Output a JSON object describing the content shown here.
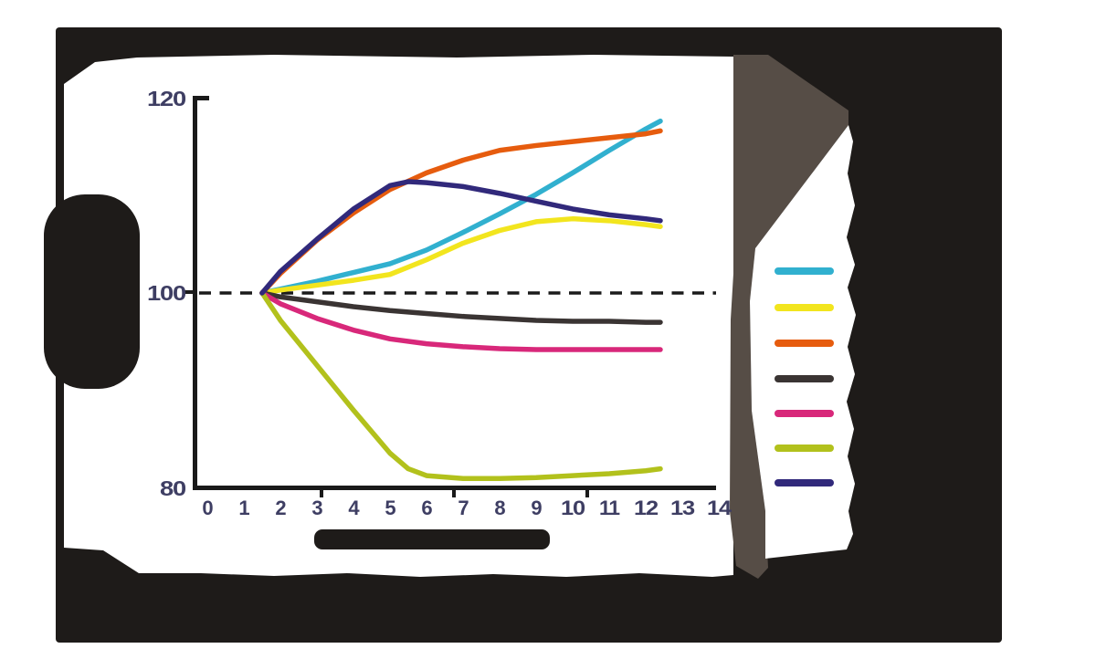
{
  "figure": {
    "backdrop_color": "#1e1b19",
    "panel_color": "#ffffff",
    "shadow_band_color": "#564d46",
    "axis_color": "#1a1a1a",
    "tick_label_color": "#3e3e63"
  },
  "obscured_text": {
    "note": "Several text areas (chart title, y-axis title, x-axis title, legend labels, footnote) are rendered as illegible dark silhouettes (dark text merged with dark background); their wording is not readable in the screenshot.",
    "illegible_regions": [
      "chart-title",
      "y-axis-title",
      "x-axis-title",
      "legend-labels",
      "footnote"
    ]
  },
  "chart_data": {
    "type": "line",
    "title": "",
    "xlabel": "",
    "ylabel": "",
    "x_range": [
      0,
      14
    ],
    "y_range": [
      80,
      120
    ],
    "x_ticks": [
      "0",
      "1",
      "2",
      "3",
      "4",
      "5",
      "6",
      "7",
      "8",
      "9",
      "10",
      "11",
      "12",
      "13",
      "14"
    ],
    "y_ticks": [
      "120",
      "100",
      "80"
    ],
    "baseline": {
      "value": 100,
      "style": "dashed",
      "color": "#1a1a1a"
    },
    "grid": false,
    "legend": {
      "position": "right",
      "labels_legible": false
    },
    "series": [
      {
        "id": "cyan",
        "color": "#31b0cf",
        "points": [
          [
            1.5,
            100
          ],
          [
            2,
            100.4
          ],
          [
            3,
            101.2
          ],
          [
            4,
            102.1
          ],
          [
            5,
            103
          ],
          [
            6,
            104.4
          ],
          [
            7,
            106.2
          ],
          [
            8,
            108.1
          ],
          [
            9,
            110.1
          ],
          [
            10,
            112.3
          ],
          [
            11,
            114.6
          ],
          [
            12,
            116.8
          ],
          [
            12.4,
            117.6
          ]
        ]
      },
      {
        "id": "yellow",
        "color": "#f2e51e",
        "points": [
          [
            1.5,
            100
          ],
          [
            2,
            100.3
          ],
          [
            3,
            100.8
          ],
          [
            4,
            101.3
          ],
          [
            5,
            101.9
          ],
          [
            6,
            103.4
          ],
          [
            7,
            105.1
          ],
          [
            8,
            106.4
          ],
          [
            9,
            107.3
          ],
          [
            10,
            107.6
          ],
          [
            11,
            107.4
          ],
          [
            12,
            107
          ],
          [
            12.4,
            106.8
          ]
        ]
      },
      {
        "id": "orange",
        "color": "#e65c0e",
        "points": [
          [
            1.5,
            100
          ],
          [
            2,
            102
          ],
          [
            3,
            105.4
          ],
          [
            4,
            108.2
          ],
          [
            5,
            110.6
          ],
          [
            6,
            112.3
          ],
          [
            7,
            113.6
          ],
          [
            8,
            114.6
          ],
          [
            9,
            115.1
          ],
          [
            10,
            115.5
          ],
          [
            11,
            115.9
          ],
          [
            12,
            116.3
          ],
          [
            12.4,
            116.6
          ]
        ]
      },
      {
        "id": "dark-gray",
        "color": "#3a3433",
        "points": [
          [
            1.5,
            100
          ],
          [
            2,
            99.6
          ],
          [
            3,
            99.1
          ],
          [
            4,
            98.6
          ],
          [
            5,
            98.2
          ],
          [
            6,
            97.9
          ],
          [
            7,
            97.6
          ],
          [
            8,
            97.4
          ],
          [
            9,
            97.2
          ],
          [
            10,
            97.1
          ],
          [
            11,
            97.1
          ],
          [
            12,
            97
          ],
          [
            12.4,
            97
          ]
        ]
      },
      {
        "id": "magenta",
        "color": "#d8287a",
        "points": [
          [
            1.5,
            100
          ],
          [
            2,
            98.9
          ],
          [
            3,
            97.4
          ],
          [
            4,
            96.2
          ],
          [
            5,
            95.3
          ],
          [
            6,
            94.8
          ],
          [
            7,
            94.5
          ],
          [
            8,
            94.3
          ],
          [
            9,
            94.2
          ],
          [
            10,
            94.2
          ],
          [
            11,
            94.2
          ],
          [
            12,
            94.2
          ],
          [
            12.4,
            94.2
          ]
        ]
      },
      {
        "id": "olive-green",
        "color": "#b2c11c",
        "points": [
          [
            1.5,
            100
          ],
          [
            2,
            97.2
          ],
          [
            3,
            92.6
          ],
          [
            4,
            88
          ],
          [
            5,
            83.6
          ],
          [
            5.5,
            82
          ],
          [
            6,
            81.3
          ],
          [
            7,
            81
          ],
          [
            8,
            81
          ],
          [
            9,
            81.1
          ],
          [
            10,
            81.3
          ],
          [
            11,
            81.5
          ],
          [
            12,
            81.8
          ],
          [
            12.4,
            82
          ]
        ]
      },
      {
        "id": "navy",
        "color": "#31297b",
        "points": [
          [
            1.5,
            100
          ],
          [
            2,
            102.2
          ],
          [
            3,
            105.5
          ],
          [
            4,
            108.6
          ],
          [
            5,
            111
          ],
          [
            5.5,
            111.4
          ],
          [
            6,
            111.3
          ],
          [
            7,
            110.9
          ],
          [
            8,
            110.2
          ],
          [
            9,
            109.4
          ],
          [
            10,
            108.6
          ],
          [
            11,
            108
          ],
          [
            12,
            107.6
          ],
          [
            12.4,
            107.4
          ]
        ]
      }
    ]
  }
}
